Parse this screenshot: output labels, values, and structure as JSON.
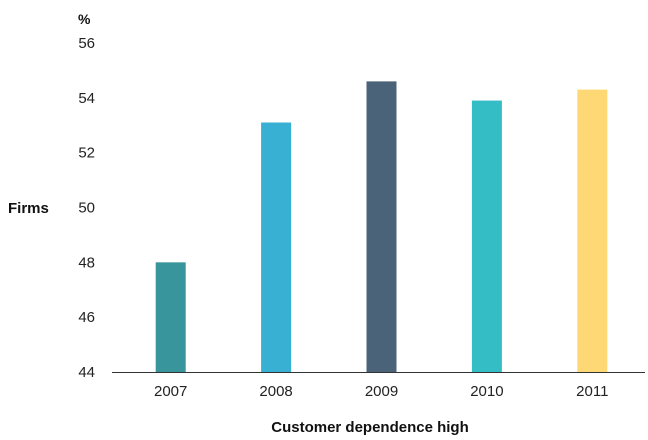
{
  "chart_data": {
    "type": "bar",
    "categories": [
      "2007",
      "2008",
      "2009",
      "2010",
      "2011"
    ],
    "values": [
      48.0,
      53.1,
      54.6,
      53.9,
      54.3
    ],
    "colors": [
      "#37959b",
      "#38b0d3",
      "#4b6379",
      "#35bdc6",
      "#fdd874"
    ],
    "ylabel": "Firms",
    "yunit": "%",
    "xlabel": "Customer dependence high",
    "ylim": [
      44,
      56
    ],
    "yticks": [
      "44",
      "46",
      "48",
      "50",
      "52",
      "54",
      "56"
    ],
    "grid": false
  }
}
